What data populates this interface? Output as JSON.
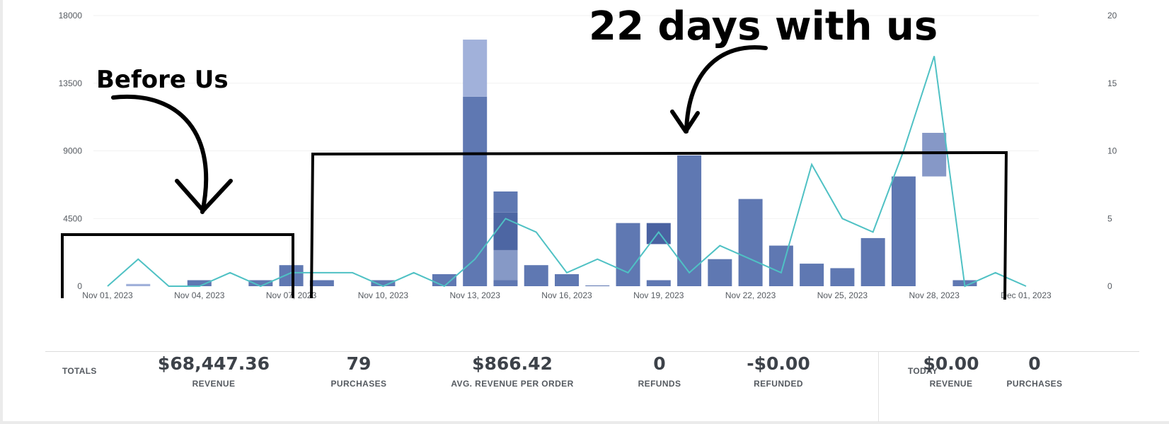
{
  "chart_data": {
    "type": "bar",
    "x": [
      "Nov 01",
      "Nov 02",
      "Nov 03",
      "Nov 04",
      "Nov 05",
      "Nov 06",
      "Nov 07",
      "Nov 08",
      "Nov 09",
      "Nov 10",
      "Nov 11",
      "Nov 12",
      "Nov 13",
      "Nov 14",
      "Nov 15",
      "Nov 16",
      "Nov 17",
      "Nov 18",
      "Nov 19",
      "Nov 20",
      "Nov 21",
      "Nov 22",
      "Nov 23",
      "Nov 24",
      "Nov 25",
      "Nov 26",
      "Nov 27",
      "Nov 28",
      "Nov 29",
      "Nov 30",
      "Dec 01"
    ],
    "x_tick_labels": [
      "Nov 01, 2023",
      "Nov 04, 2023",
      "Nov 07, 2023",
      "Nov 10, 2023",
      "Nov 13, 2023",
      "Nov 16, 2023",
      "Nov 19, 2023",
      "Nov 22, 2023",
      "Nov 25, 2023",
      "Nov 28, 2023",
      "Dec 01, 2023"
    ],
    "x_tick_indices": [
      0,
      3,
      6,
      9,
      12,
      15,
      18,
      21,
      24,
      27,
      30
    ],
    "series": [
      {
        "name": "Revenue (main)",
        "axis": "left",
        "kind": "bar",
        "color": "#5f78b2",
        "values": [
          0,
          0,
          0,
          400,
          0,
          400,
          1400,
          400,
          0,
          400,
          0,
          800,
          12600,
          0,
          1400,
          800,
          50,
          4200,
          400,
          8700,
          1800,
          5800,
          2700,
          1500,
          1200,
          3200,
          7300,
          0,
          400,
          0,
          0
        ]
      },
      {
        "name": "Revenue (secondary)",
        "axis": "left",
        "kind": "bar-stack",
        "color": "#a1b1da",
        "values": [
          0,
          150,
          0,
          0,
          0,
          0,
          0,
          0,
          0,
          0,
          0,
          0,
          3800,
          0,
          0,
          0,
          0,
          0,
          0,
          0,
          0,
          0,
          0,
          0,
          0,
          0,
          0,
          0,
          0,
          0,
          0
        ]
      },
      {
        "name": "Purchases",
        "axis": "right",
        "kind": "line",
        "color": "#4fc1c4",
        "values": [
          0,
          2,
          0,
          0,
          1,
          0,
          1,
          1,
          1,
          0,
          1,
          0,
          2,
          5,
          4,
          1,
          2,
          1,
          4,
          1,
          3,
          2,
          1,
          9,
          5,
          4,
          10,
          17,
          0,
          1,
          0
        ]
      }
    ],
    "split_bar": {
      "index": 13,
      "segments": [
        {
          "from": 0,
          "to": 400,
          "color": "#5f78b2"
        },
        {
          "from": 400,
          "to": 2400,
          "color": "#8699c6"
        },
        {
          "from": 2400,
          "to": 4900,
          "color": "#4d66a3"
        },
        {
          "from": 4900,
          "to": 6300,
          "color": "#5f78b2"
        }
      ]
    },
    "highlight_segments": [
      {
        "index": 18,
        "from": 2800,
        "to": 4200,
        "color": "#4a62a1"
      },
      {
        "index": 27,
        "from": 7300,
        "to": 10200,
        "color": "#8698c7"
      }
    ],
    "y_left": {
      "ylim": [
        0,
        18000
      ],
      "ticks": [
        0,
        4500,
        9000,
        13500,
        18000
      ]
    },
    "y_right": {
      "ylim": [
        0,
        20
      ],
      "ticks": [
        0,
        5,
        10,
        15,
        20
      ]
    },
    "grid": true,
    "annotations": {
      "before": "Before Us",
      "after": "22 days with us",
      "before_range": [
        0,
        6
      ],
      "after_range": [
        7,
        29
      ]
    }
  },
  "totals": {
    "label": "TOTALS",
    "stats": [
      {
        "value": "$68,447.36",
        "label": "REVENUE"
      },
      {
        "value": "79",
        "label": "PURCHASES"
      },
      {
        "value": "$866.42",
        "label": "AVG. REVENUE PER ORDER"
      },
      {
        "value": "0",
        "label": "REFUNDS"
      },
      {
        "value": "-$0.00",
        "label": "REFUNDED"
      }
    ]
  },
  "today": {
    "label": "TODAY",
    "stats": [
      {
        "value": "$0.00",
        "label": "REVENUE"
      },
      {
        "value": "0",
        "label": "PURCHASES"
      }
    ]
  }
}
